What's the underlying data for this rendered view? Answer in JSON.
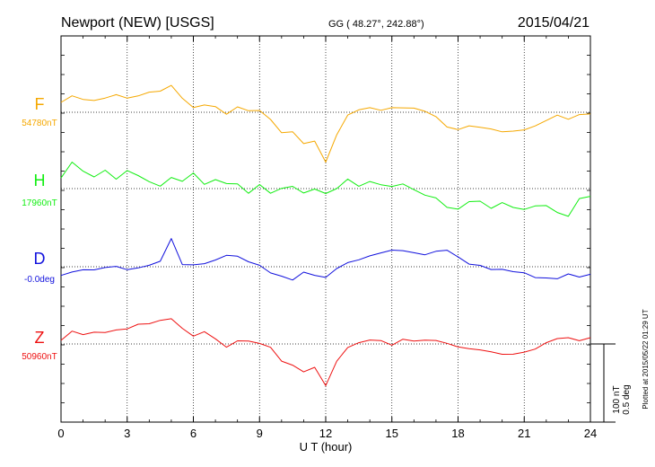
{
  "header": {
    "station": "Newport (NEW)  [USGS]",
    "coords": "GG ( 48.27°, 242.88°)",
    "date": "2015/04/21"
  },
  "chart_data": {
    "type": "line",
    "xlabel": "U T (hour)",
    "xlim": [
      0,
      24
    ],
    "xticks": [
      0,
      3,
      6,
      9,
      12,
      15,
      18,
      21,
      24
    ],
    "xtick_labels": [
      "0",
      "3",
      "6",
      "9",
      "12",
      "15",
      "18",
      "21",
      "24"
    ],
    "grid": true,
    "units_per_division": "100 nT",
    "angle_per_division": "0.5 deg",
    "series": [
      {
        "name": "F",
        "baseline_label": "54780nT",
        "color": "#f5a800",
        "offset": 0,
        "x": [
          0,
          0.5,
          1,
          1.5,
          2,
          2.5,
          3,
          3.5,
          4,
          4.5,
          5,
          5.5,
          6,
          6.5,
          7,
          7.5,
          8,
          8.5,
          9,
          9.5,
          10,
          10.5,
          11,
          11.5,
          12,
          12.5,
          13,
          13.5,
          14,
          14.5,
          15,
          15.5,
          16,
          16.5,
          17,
          17.5,
          18,
          18.5,
          19,
          19.5,
          20,
          20.5,
          21,
          21.5,
          22,
          22.5,
          23,
          23.5,
          24
        ],
        "y": [
          10,
          18,
          12,
          14,
          16,
          22,
          15,
          18,
          20,
          24,
          30,
          18,
          5,
          8,
          4,
          -2,
          6,
          4,
          2,
          -8,
          -25,
          -22,
          -35,
          -30,
          -55,
          -25,
          -5,
          2,
          5,
          4,
          6,
          5,
          3,
          0,
          -5,
          -15,
          -18,
          -15,
          -18,
          -20,
          -22,
          -20,
          -18,
          -15,
          -10,
          -5,
          -8,
          -2,
          0
        ]
      },
      {
        "name": "H",
        "baseline_label": "17960nT",
        "color": "#11ee11",
        "offset": 0,
        "x": [
          0,
          0.5,
          1,
          1.5,
          2,
          2.5,
          3,
          3.5,
          4,
          4.5,
          5,
          5.5,
          6,
          6.5,
          7,
          7.5,
          8,
          8.5,
          9,
          9.5,
          10,
          10.5,
          11,
          11.5,
          12,
          12.5,
          13,
          13.5,
          14,
          14.5,
          15,
          15.5,
          16,
          16.5,
          17,
          17.5,
          18,
          18.5,
          19,
          19.5,
          20,
          20.5,
          21,
          21.5,
          22,
          22.5,
          23,
          23.5,
          24
        ],
        "y": [
          10,
          30,
          20,
          15,
          20,
          10,
          18,
          15,
          8,
          5,
          12,
          8,
          15,
          5,
          10,
          8,
          5,
          -5,
          2,
          -5,
          0,
          5,
          -5,
          0,
          -8,
          0,
          10,
          5,
          8,
          5,
          0,
          5,
          -2,
          -5,
          -10,
          -20,
          -25,
          -15,
          -15,
          -20,
          -15,
          -20,
          -25,
          -20,
          -20,
          -25,
          -30,
          -10,
          -10
        ]
      },
      {
        "name": "D",
        "baseline_label": "-0.0deg",
        "color": "#1111dd",
        "offset": 0,
        "x": [
          0,
          0.5,
          1,
          1.5,
          2,
          2.5,
          3,
          3.5,
          4,
          4.5,
          5,
          5.5,
          6,
          6.5,
          7,
          7.5,
          8,
          8.5,
          9,
          9.5,
          10,
          10.5,
          11,
          11.5,
          12,
          12.5,
          13,
          13.5,
          14,
          14.5,
          15,
          15.5,
          16,
          16.5,
          17,
          17.5,
          18,
          18.5,
          19,
          19.5,
          20,
          20.5,
          21,
          21.5,
          22,
          22.5,
          23,
          23.5,
          24
        ],
        "y": [
          -8,
          -5,
          -3,
          -5,
          -2,
          0,
          -2,
          0,
          2,
          5,
          30,
          2,
          3,
          5,
          8,
          12,
          10,
          5,
          2,
          -5,
          -10,
          -15,
          -8,
          -10,
          -12,
          0,
          5,
          8,
          10,
          15,
          18,
          20,
          16,
          14,
          15,
          18,
          10,
          5,
          2,
          -2,
          -5,
          -6,
          -8,
          -10,
          -12,
          -12,
          -10,
          -12,
          -10
        ]
      },
      {
        "name": "Z",
        "baseline_label": "50960nT",
        "color": "#ee1111",
        "offset": 0,
        "x": [
          0,
          0.5,
          1,
          1.5,
          2,
          2.5,
          3,
          3.5,
          4,
          4.5,
          5,
          5.5,
          6,
          6.5,
          7,
          7.5,
          8,
          8.5,
          9,
          9.5,
          10,
          10.5,
          11,
          11.5,
          12,
          12.5,
          13,
          13.5,
          14,
          14.5,
          15,
          15.5,
          16,
          16.5,
          17,
          17.5,
          18,
          18.5,
          19,
          19.5,
          20,
          20.5,
          21,
          21.5,
          22,
          22.5,
          23,
          23.5,
          24
        ],
        "y": [
          5,
          12,
          10,
          12,
          15,
          16,
          18,
          20,
          22,
          25,
          30,
          18,
          10,
          12,
          5,
          -5,
          5,
          4,
          2,
          -5,
          -20,
          -25,
          -30,
          -25,
          -45,
          -20,
          -5,
          0,
          5,
          5,
          0,
          5,
          2,
          3,
          4,
          2,
          -2,
          -5,
          -8,
          -10,
          -12,
          -10,
          -8,
          -5,
          0,
          5,
          6,
          5,
          8
        ]
      }
    ],
    "footnote": "Plotted at 2015/05/22 01:29 UT"
  }
}
